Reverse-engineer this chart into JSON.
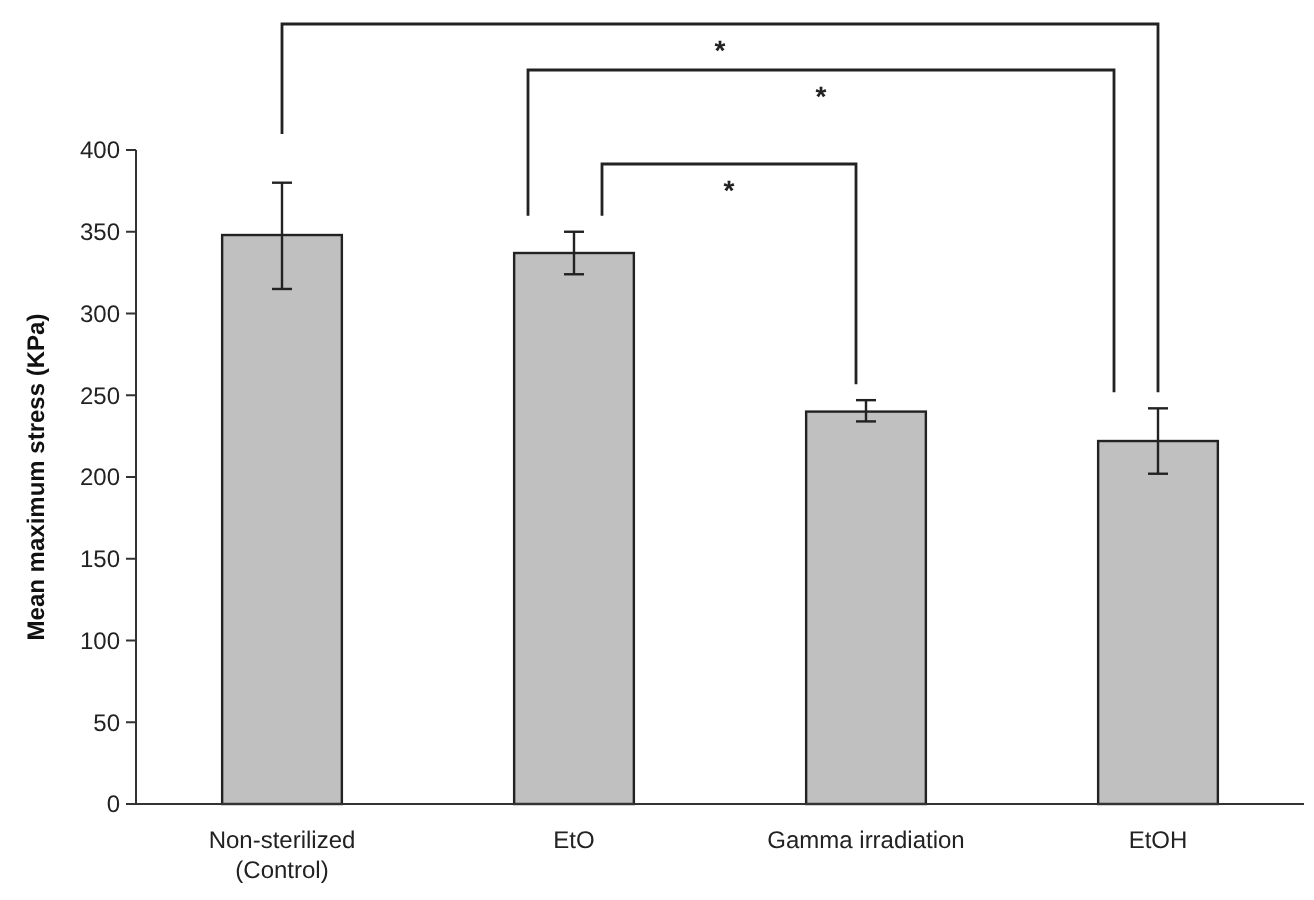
{
  "chart_data": {
    "type": "bar",
    "ylabel": "Mean maximum stress (KPa)",
    "categories": [
      "Non-sterilized\n(Control)",
      "EtO",
      "Gamma irradiation",
      "EtOH"
    ],
    "values": [
      348,
      337,
      240,
      222
    ],
    "errors": [
      [
        315,
        380
      ],
      [
        324,
        350
      ],
      [
        234,
        247
      ],
      [
        202,
        242
      ]
    ],
    "color": "#c0c0c0",
    "ylim": [
      0,
      400
    ],
    "yticks": [
      0,
      50,
      100,
      150,
      200,
      250,
      300,
      350,
      400
    ],
    "grid": false,
    "annotations": [
      "*",
      "*",
      "*"
    ]
  }
}
